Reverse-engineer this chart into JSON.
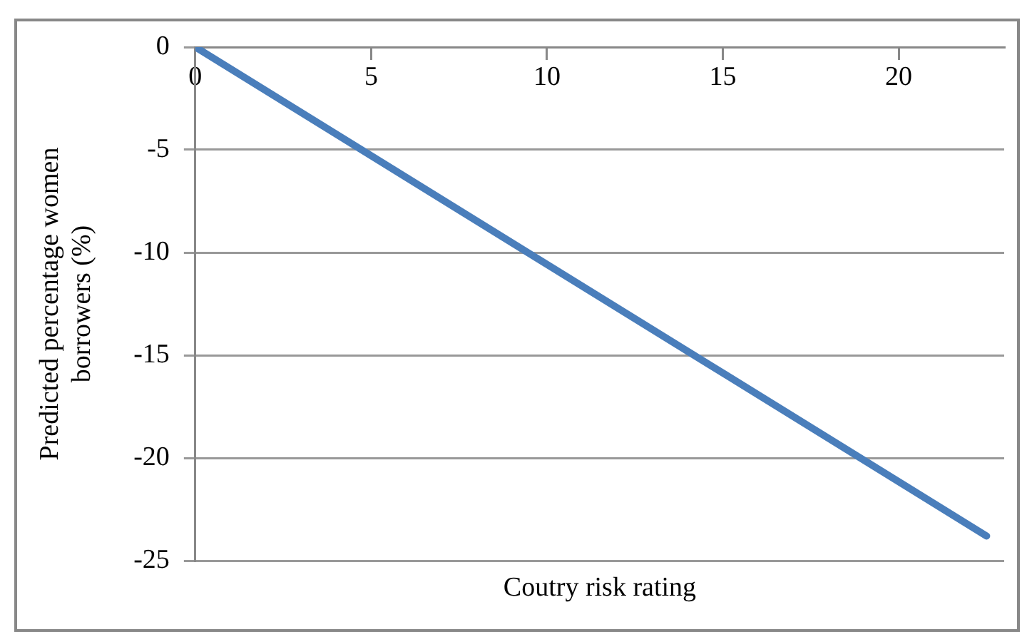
{
  "chart_data": {
    "type": "line",
    "xlabel": "Coutry risk rating",
    "ylabel": "Predicted percentage women borrowers (%)",
    "x": [
      0,
      22.5
    ],
    "series": [
      {
        "color": "#4a7ebb",
        "values": [
          0,
          -23.8
        ]
      }
    ],
    "xlim": [
      0,
      23
    ],
    "xticks": [
      0,
      5,
      10,
      15,
      20
    ],
    "ylim": [
      -25,
      0
    ],
    "yticks": [
      0,
      -5,
      -10,
      -15,
      -20,
      -25
    ],
    "grid": "y",
    "legend": false,
    "marker": "none",
    "line_style": "solid"
  }
}
